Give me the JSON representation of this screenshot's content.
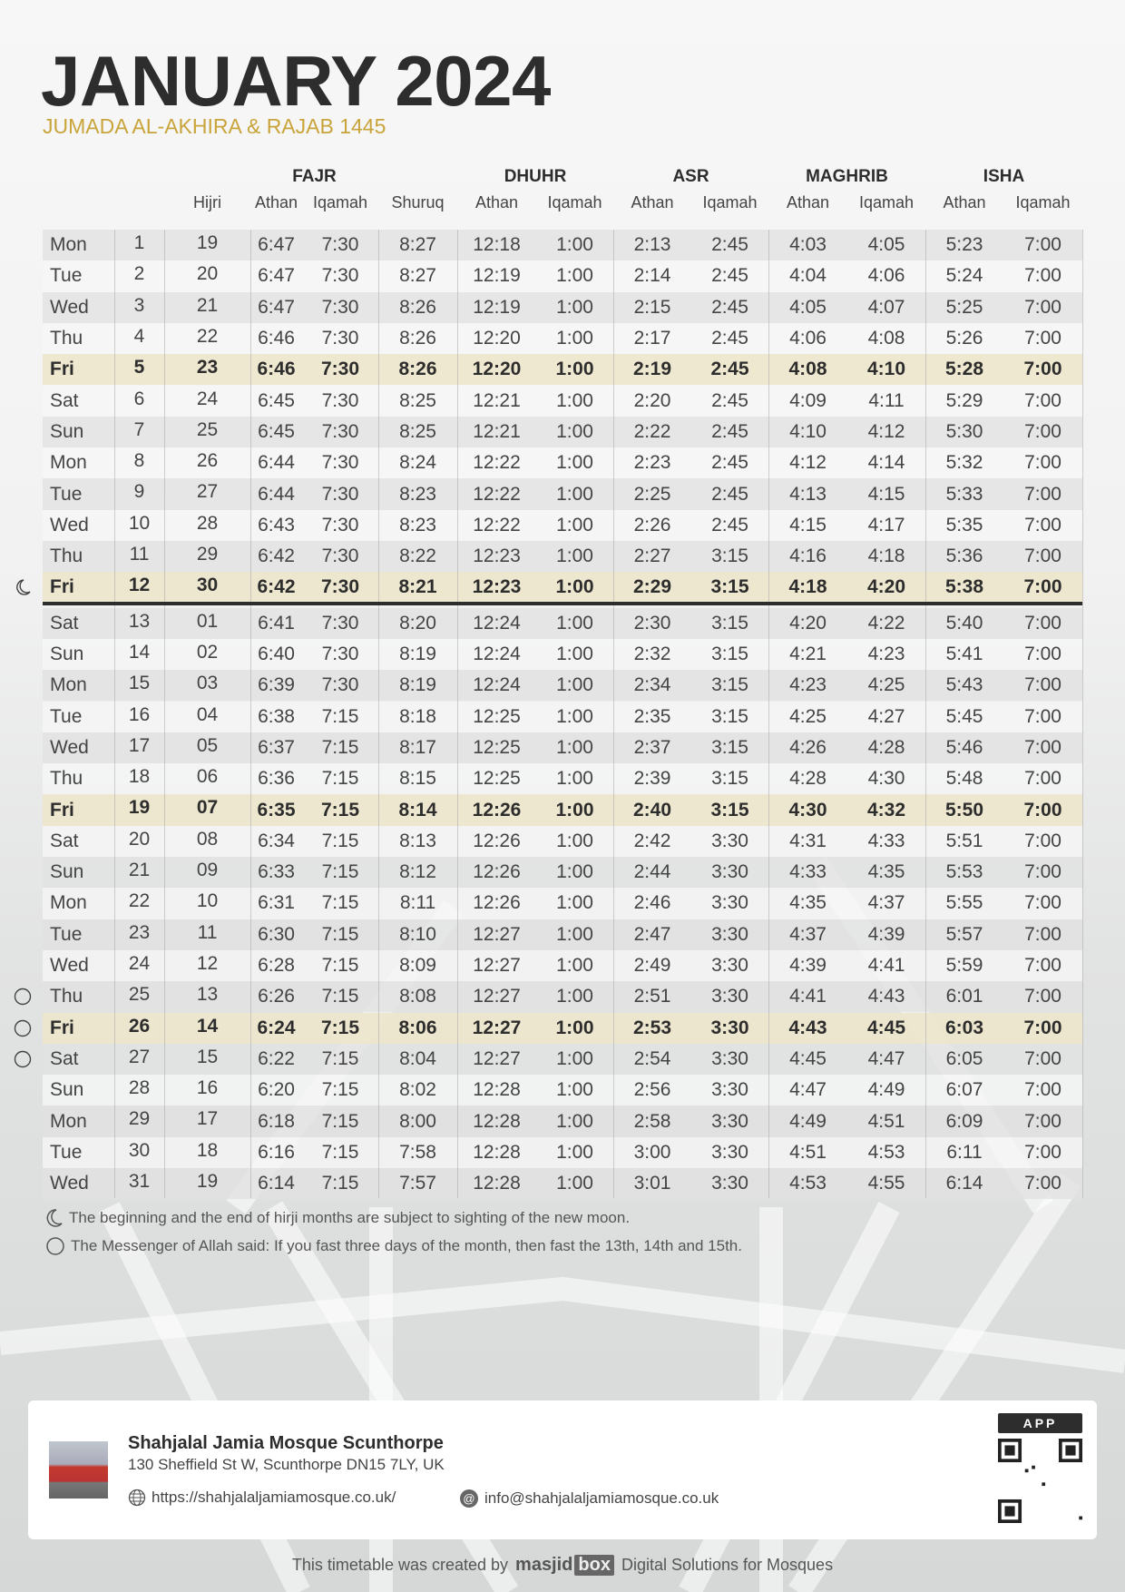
{
  "header": {
    "title": "JANUARY 2024",
    "subtitle": "JUMADA AL-AKHIRA & RAJAB 1445"
  },
  "columns": {
    "groups": [
      "FAJR",
      "DHUHR",
      "ASR",
      "MAGHRIB",
      "ISHA"
    ],
    "sub": [
      "Hijri",
      "Athan",
      "Iqamah",
      "Shuruq",
      "Athan",
      "Iqamah",
      "Athan",
      "Iqamah",
      "Athan",
      "Iqamah",
      "Athan",
      "Iqamah"
    ]
  },
  "rows": [
    [
      "Mon",
      "1",
      "19",
      "6:47",
      "7:30",
      "8:27",
      "12:18",
      "1:00",
      "2:13",
      "2:45",
      "4:03",
      "4:05",
      "5:23",
      "7:00"
    ],
    [
      "Tue",
      "2",
      "20",
      "6:47",
      "7:30",
      "8:27",
      "12:19",
      "1:00",
      "2:14",
      "2:45",
      "4:04",
      "4:06",
      "5:24",
      "7:00"
    ],
    [
      "Wed",
      "3",
      "21",
      "6:47",
      "7:30",
      "8:26",
      "12:19",
      "1:00",
      "2:15",
      "2:45",
      "4:05",
      "4:07",
      "5:25",
      "7:00"
    ],
    [
      "Thu",
      "4",
      "22",
      "6:46",
      "7:30",
      "8:26",
      "12:20",
      "1:00",
      "2:17",
      "2:45",
      "4:06",
      "4:08",
      "5:26",
      "7:00"
    ],
    [
      "Fri",
      "5",
      "23",
      "6:46",
      "7:30",
      "8:26",
      "12:20",
      "1:00",
      "2:19",
      "2:45",
      "4:08",
      "4:10",
      "5:28",
      "7:00"
    ],
    [
      "Sat",
      "6",
      "24",
      "6:45",
      "7:30",
      "8:25",
      "12:21",
      "1:00",
      "2:20",
      "2:45",
      "4:09",
      "4:11",
      "5:29",
      "7:00"
    ],
    [
      "Sun",
      "7",
      "25",
      "6:45",
      "7:30",
      "8:25",
      "12:21",
      "1:00",
      "2:22",
      "2:45",
      "4:10",
      "4:12",
      "5:30",
      "7:00"
    ],
    [
      "Mon",
      "8",
      "26",
      "6:44",
      "7:30",
      "8:24",
      "12:22",
      "1:00",
      "2:23",
      "2:45",
      "4:12",
      "4:14",
      "5:32",
      "7:00"
    ],
    [
      "Tue",
      "9",
      "27",
      "6:44",
      "7:30",
      "8:23",
      "12:22",
      "1:00",
      "2:25",
      "2:45",
      "4:13",
      "4:15",
      "5:33",
      "7:00"
    ],
    [
      "Wed",
      "10",
      "28",
      "6:43",
      "7:30",
      "8:23",
      "12:22",
      "1:00",
      "2:26",
      "2:45",
      "4:15",
      "4:17",
      "5:35",
      "7:00"
    ],
    [
      "Thu",
      "11",
      "29",
      "6:42",
      "7:30",
      "8:22",
      "12:23",
      "1:00",
      "2:27",
      "3:15",
      "4:16",
      "4:18",
      "5:36",
      "7:00"
    ],
    [
      "Fri",
      "12",
      "30",
      "6:42",
      "7:30",
      "8:21",
      "12:23",
      "1:00",
      "2:29",
      "3:15",
      "4:18",
      "4:20",
      "5:38",
      "7:00"
    ],
    [
      "Sat",
      "13",
      "01",
      "6:41",
      "7:30",
      "8:20",
      "12:24",
      "1:00",
      "2:30",
      "3:15",
      "4:20",
      "4:22",
      "5:40",
      "7:00"
    ],
    [
      "Sun",
      "14",
      "02",
      "6:40",
      "7:30",
      "8:19",
      "12:24",
      "1:00",
      "2:32",
      "3:15",
      "4:21",
      "4:23",
      "5:41",
      "7:00"
    ],
    [
      "Mon",
      "15",
      "03",
      "6:39",
      "7:30",
      "8:19",
      "12:24",
      "1:00",
      "2:34",
      "3:15",
      "4:23",
      "4:25",
      "5:43",
      "7:00"
    ],
    [
      "Tue",
      "16",
      "04",
      "6:38",
      "7:15",
      "8:18",
      "12:25",
      "1:00",
      "2:35",
      "3:15",
      "4:25",
      "4:27",
      "5:45",
      "7:00"
    ],
    [
      "Wed",
      "17",
      "05",
      "6:37",
      "7:15",
      "8:17",
      "12:25",
      "1:00",
      "2:37",
      "3:15",
      "4:26",
      "4:28",
      "5:46",
      "7:00"
    ],
    [
      "Thu",
      "18",
      "06",
      "6:36",
      "7:15",
      "8:15",
      "12:25",
      "1:00",
      "2:39",
      "3:15",
      "4:28",
      "4:30",
      "5:48",
      "7:00"
    ],
    [
      "Fri",
      "19",
      "07",
      "6:35",
      "7:15",
      "8:14",
      "12:26",
      "1:00",
      "2:40",
      "3:15",
      "4:30",
      "4:32",
      "5:50",
      "7:00"
    ],
    [
      "Sat",
      "20",
      "08",
      "6:34",
      "7:15",
      "8:13",
      "12:26",
      "1:00",
      "2:42",
      "3:30",
      "4:31",
      "4:33",
      "5:51",
      "7:00"
    ],
    [
      "Sun",
      "21",
      "09",
      "6:33",
      "7:15",
      "8:12",
      "12:26",
      "1:00",
      "2:44",
      "3:30",
      "4:33",
      "4:35",
      "5:53",
      "7:00"
    ],
    [
      "Mon",
      "22",
      "10",
      "6:31",
      "7:15",
      "8:11",
      "12:26",
      "1:00",
      "2:46",
      "3:30",
      "4:35",
      "4:37",
      "5:55",
      "7:00"
    ],
    [
      "Tue",
      "23",
      "11",
      "6:30",
      "7:15",
      "8:10",
      "12:27",
      "1:00",
      "2:47",
      "3:30",
      "4:37",
      "4:39",
      "5:57",
      "7:00"
    ],
    [
      "Wed",
      "24",
      "12",
      "6:28",
      "7:15",
      "8:09",
      "12:27",
      "1:00",
      "2:49",
      "3:30",
      "4:39",
      "4:41",
      "5:59",
      "7:00"
    ],
    [
      "Thu",
      "25",
      "13",
      "6:26",
      "7:15",
      "8:08",
      "12:27",
      "1:00",
      "2:51",
      "3:30",
      "4:41",
      "4:43",
      "6:01",
      "7:00"
    ],
    [
      "Fri",
      "26",
      "14",
      "6:24",
      "7:15",
      "8:06",
      "12:27",
      "1:00",
      "2:53",
      "3:30",
      "4:43",
      "4:45",
      "6:03",
      "7:00"
    ],
    [
      "Sat",
      "27",
      "15",
      "6:22",
      "7:15",
      "8:04",
      "12:27",
      "1:00",
      "2:54",
      "3:30",
      "4:45",
      "4:47",
      "6:05",
      "7:00"
    ],
    [
      "Sun",
      "28",
      "16",
      "6:20",
      "7:15",
      "8:02",
      "12:28",
      "1:00",
      "2:56",
      "3:30",
      "4:47",
      "4:49",
      "6:07",
      "7:00"
    ],
    [
      "Mon",
      "29",
      "17",
      "6:18",
      "7:15",
      "8:00",
      "12:28",
      "1:00",
      "2:58",
      "3:30",
      "4:49",
      "4:51",
      "6:09",
      "7:00"
    ],
    [
      "Tue",
      "30",
      "18",
      "6:16",
      "7:15",
      "7:58",
      "12:28",
      "1:00",
      "3:00",
      "3:30",
      "4:51",
      "4:53",
      "6:11",
      "7:00"
    ],
    [
      "Wed",
      "31",
      "19",
      "6:14",
      "7:15",
      "7:57",
      "12:28",
      "1:00",
      "3:01",
      "3:30",
      "4:53",
      "4:55",
      "6:14",
      "7:00"
    ]
  ],
  "markers": {
    "moon_days": [
      "12"
    ],
    "white_days": [
      "25",
      "26",
      "27"
    ]
  },
  "notes": {
    "moon": "The beginning and the end of hirji months are subject to sighting of the new moon.",
    "white_days": "The Messenger of Allah said: If you fast three days of the month, then fast the 13th, 14th and 15th."
  },
  "mosque": {
    "name": "Shahjalal Jamia Mosque Scunthorpe",
    "address": "130 Sheffield St W, Scunthorpe DN15 7LY, UK",
    "website": "https://shahjalaljamiamosque.co.uk/",
    "email": "info@shahjalaljamiamosque.co.uk",
    "app_label": "APP"
  },
  "credit": {
    "prefix": "This timetable was created by",
    "logo_a": "masjid",
    "logo_b": "box",
    "suffix": "Digital Solutions for Mosques"
  },
  "colors": {
    "accent": "#c9a43a",
    "friday_row": "#ece4c8",
    "text": "#2d2d2d"
  }
}
